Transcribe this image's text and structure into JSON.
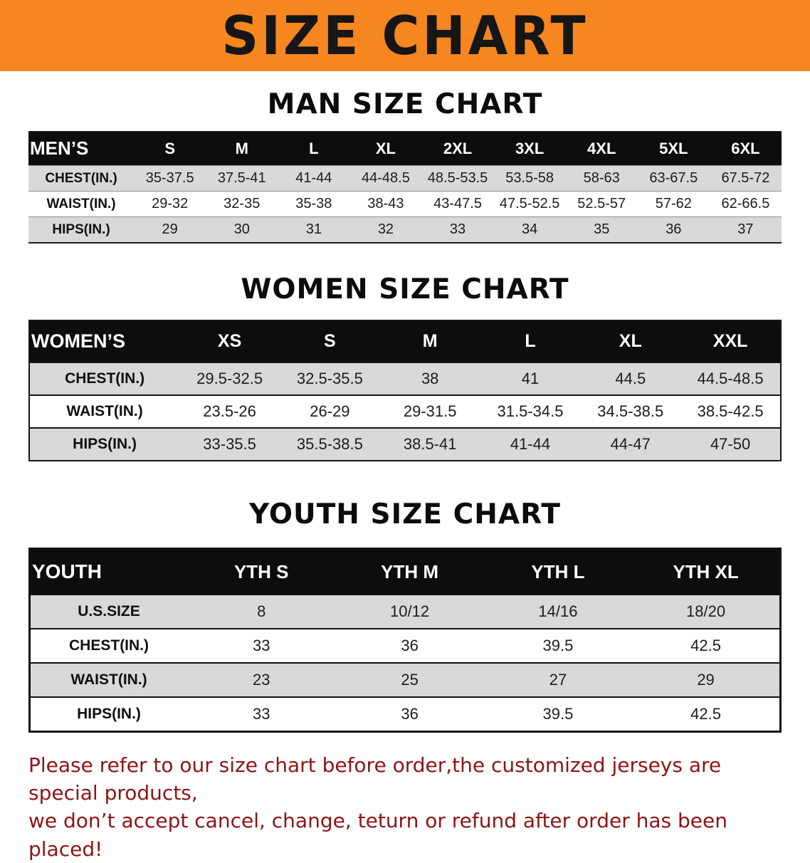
{
  "banner": {
    "title": "SIZE CHART"
  },
  "colors": {
    "banner_bg": "#f6861f",
    "banner_text": "#161616",
    "table_header_bg": "#0d0d0d",
    "table_header_text": "#ffffff",
    "row_shade": "#d9d9d9",
    "row_white": "#ffffff",
    "disclaimer_text": "#8e1414"
  },
  "sections": {
    "men": {
      "heading": "MAN SIZE CHART",
      "table": {
        "header": [
          "MEN’S",
          "S",
          "M",
          "L",
          "XL",
          "2XL",
          "3XL",
          "4XL",
          "5XL",
          "6XL"
        ],
        "rows": [
          [
            "CHEST(IN.)",
            "35-37.5",
            "37.5-41",
            "41-44",
            "44-48.5",
            "48.5-53.5",
            "53.5-58",
            "58-63",
            "63-67.5",
            "67.5-72"
          ],
          [
            "WAIST(IN.)",
            "29-32",
            "32-35",
            "35-38",
            "38-43",
            "43-47.5",
            "47.5-52.5",
            "52.5-57",
            "57-62",
            "62-66.5"
          ],
          [
            "HIPS(IN.)",
            "29",
            "30",
            "31",
            "32",
            "33",
            "34",
            "35",
            "36",
            "37"
          ]
        ]
      }
    },
    "women": {
      "heading": "WOMEN SIZE CHART",
      "table": {
        "header": [
          "WOMEN’S",
          "XS",
          "S",
          "M",
          "L",
          "XL",
          "XXL"
        ],
        "rows": [
          [
            "CHEST(IN.)",
            "29.5-32.5",
            "32.5-35.5",
            "38",
            "41",
            "44.5",
            "44.5-48.5"
          ],
          [
            "WAIST(IN.)",
            "23.5-26",
            "26-29",
            "29-31.5",
            "31.5-34.5",
            "34.5-38.5",
            "38.5-42.5"
          ],
          [
            "HIPS(IN.)",
            "33-35.5",
            "35.5-38.5",
            "38.5-41",
            "41-44",
            "44-47",
            "47-50"
          ]
        ]
      }
    },
    "youth": {
      "heading": "YOUTH SIZE CHART",
      "table": {
        "header": [
          "YOUTH",
          "YTH S",
          "YTH M",
          "YTH L",
          "YTH XL"
        ],
        "rows": [
          [
            "U.S.SIZE",
            "8",
            "10/12",
            "14/16",
            "18/20"
          ],
          [
            "CHEST(IN.)",
            "33",
            "36",
            "39.5",
            "42.5"
          ],
          [
            "WAIST(IN.)",
            "23",
            "25",
            "27",
            "29"
          ],
          [
            "HIPS(IN.)",
            "33",
            "36",
            "39.5",
            "42.5"
          ]
        ]
      }
    }
  },
  "footer": {
    "line1": "Please refer to our size chart before order,the customized jerseys are special products,",
    "line2": "we don’t accept cancel, change, teturn or refund after order has been placed!"
  }
}
